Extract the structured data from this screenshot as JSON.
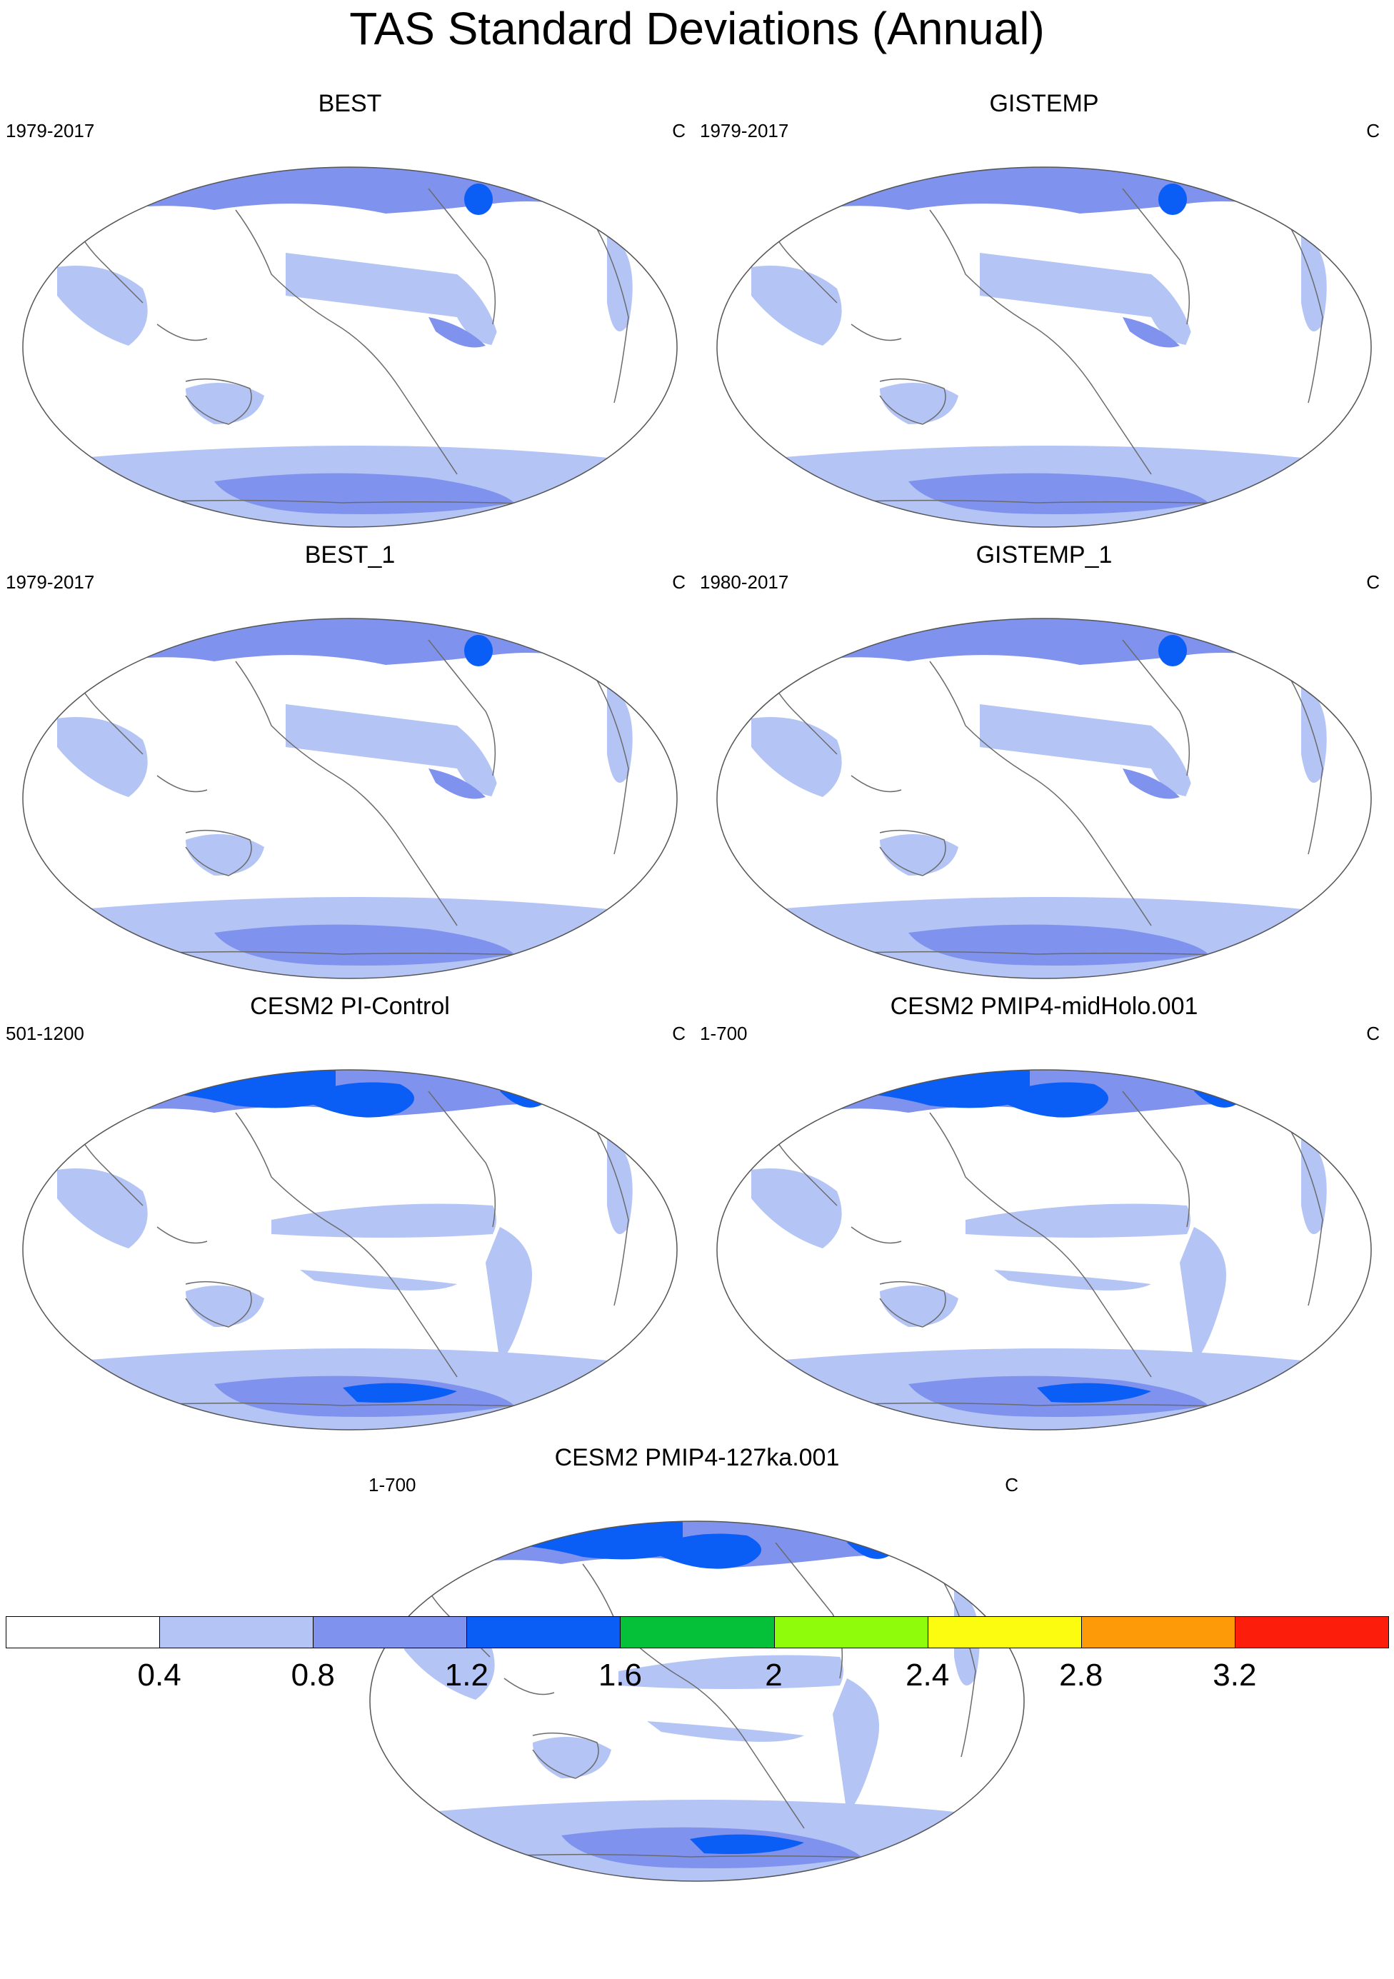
{
  "figure": {
    "title": "TAS Standard Deviations (Annual)"
  },
  "chart_data": [
    {
      "type": "heatmap",
      "title": "BEST",
      "period": "1979-2017",
      "units": "C"
    },
    {
      "type": "heatmap",
      "title": "GISTEMP",
      "period": "1979-2017",
      "units": "C"
    },
    {
      "type": "heatmap",
      "title": "BEST_1",
      "period": "1979-2017",
      "units": "C"
    },
    {
      "type": "heatmap",
      "title": "GISTEMP_1",
      "period": "1980-2017",
      "units": "C"
    },
    {
      "type": "heatmap",
      "title": "CESM2 PI-Control",
      "period": "501-1200",
      "units": "C"
    },
    {
      "type": "heatmap",
      "title": "CESM2 PMIP4-midHolo.001",
      "period": "1-700",
      "units": "C"
    },
    {
      "type": "heatmap",
      "title": "CESM2 PMIP4-127ka.001",
      "period": "1-700",
      "units": "C"
    }
  ],
  "colorbar": {
    "levels": [
      "0.4",
      "0.8",
      "1.2",
      "1.6",
      "2",
      "2.4",
      "2.8",
      "3.2"
    ],
    "colors": [
      "#ffffff",
      "#b3c4f5",
      "#7f92ee",
      "#0a5df5",
      "#05c13a",
      "#8efc0b",
      "#fcfc10",
      "#fc9a08",
      "#fc1e0a"
    ]
  }
}
